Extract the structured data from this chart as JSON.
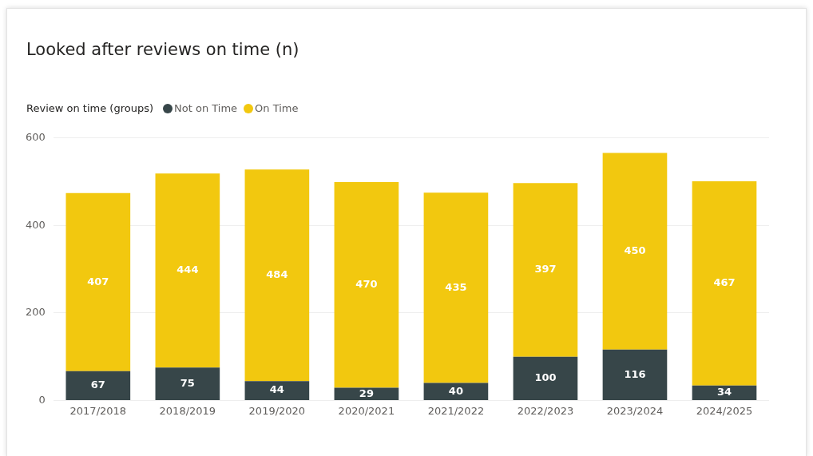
{
  "chart_data": {
    "type": "bar",
    "title": "Looked after reviews on time (n)",
    "legend_title": "Review on time (groups)",
    "categories": [
      "2017/2018",
      "2018/2019",
      "2019/2020",
      "2020/2021",
      "2021/2022",
      "2022/2023",
      "2023/2024",
      "2024/2025"
    ],
    "series": [
      {
        "name": "Not on Time",
        "color": "#374649",
        "values": [
          67,
          75,
          44,
          29,
          40,
          100,
          116,
          34
        ]
      },
      {
        "name": "On Time",
        "color": "#f2c80f",
        "values": [
          407,
          444,
          484,
          470,
          435,
          397,
          450,
          467
        ]
      }
    ],
    "stacked": true,
    "ylim": [
      0,
      600
    ],
    "yticks": [
      0,
      200,
      400,
      600
    ],
    "grid": "y",
    "legend": "top left",
    "data_labels": true
  }
}
